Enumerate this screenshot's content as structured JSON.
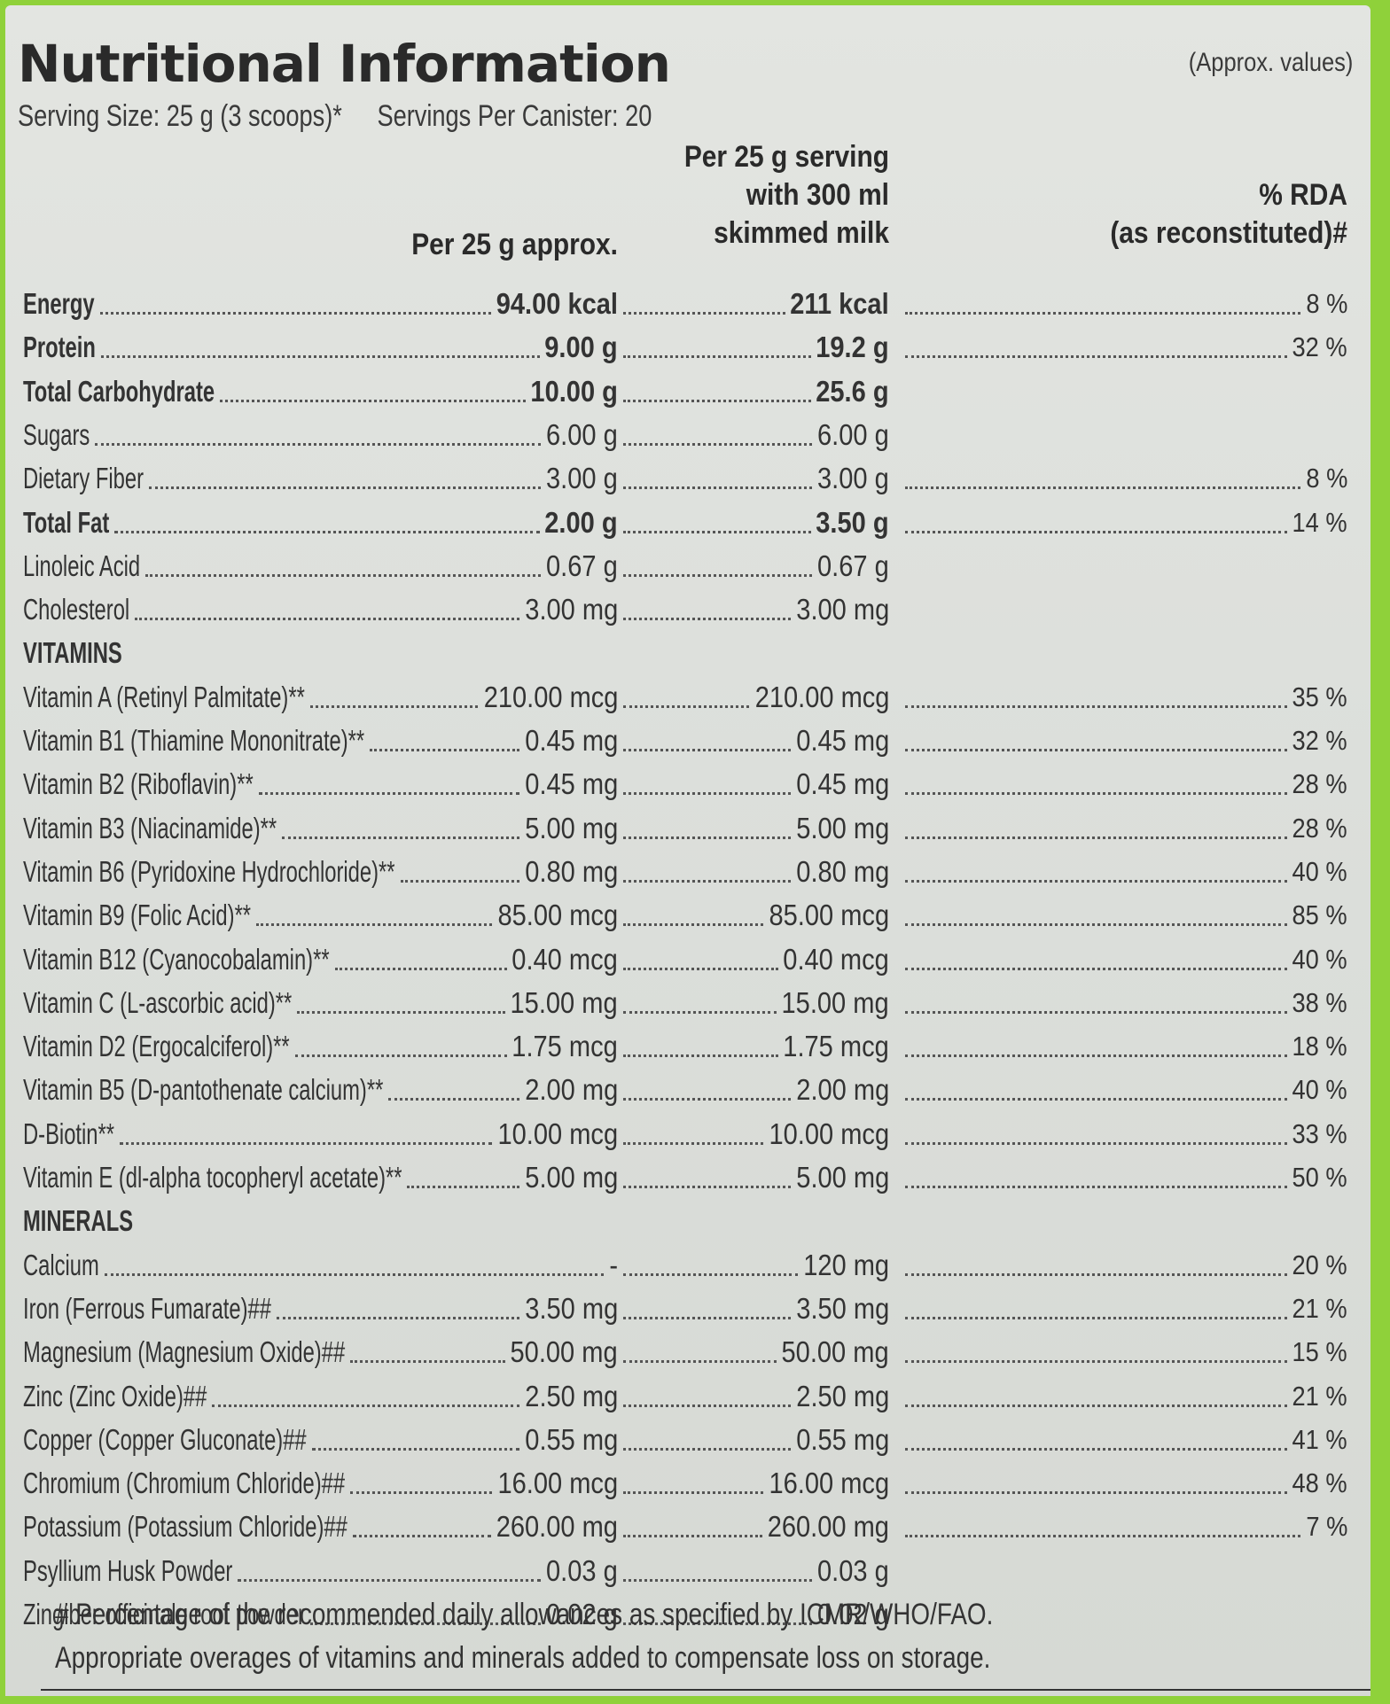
{
  "header": {
    "title": "Nutritional Information",
    "approx": "(Approx. values)",
    "serving_size": "Serving Size: 25 g (3 scoops)*",
    "servings_per_canister": "Servings Per Canister: 20"
  },
  "columns": {
    "col1": "Per 25 g approx.",
    "col2_line1": "Per 25 g serving",
    "col2_line2": "with 300 ml",
    "col2_line3": "skimmed milk",
    "col3_line1": "% RDA",
    "col3_line2": "(as reconstituted)#"
  },
  "rows": [
    {
      "label": "Energy",
      "c1": "94.00 kcal",
      "c2": "211 kcal",
      "c3": "8 %",
      "bold": true
    },
    {
      "label": "Protein",
      "c1": "9.00 g",
      "c2": "19.2 g",
      "c3": "32 %",
      "bold": true
    },
    {
      "label": "Total Carbohydrate",
      "c1": "10.00 g",
      "c2": "25.6 g",
      "c3": "",
      "bold": true
    },
    {
      "label": "Sugars",
      "c1": "6.00 g",
      "c2": "6.00 g",
      "c3": "",
      "bold": false
    },
    {
      "label": "Dietary Fiber",
      "c1": "3.00 g",
      "c2": "3.00 g",
      "c3": "8 %",
      "bold": false
    },
    {
      "label": "Total Fat",
      "c1": "2.00 g",
      "c2": "3.50 g",
      "c3": "14 %",
      "bold": true
    },
    {
      "label": "Linoleic Acid",
      "c1": "0.67 g",
      "c2": "0.67 g",
      "c3": "",
      "bold": false
    },
    {
      "label": "Cholesterol",
      "c1": "3.00 mg",
      "c2": "3.00 mg",
      "c3": "",
      "bold": false
    },
    {
      "label": "VITAMINS",
      "section": true
    },
    {
      "label": "Vitamin A (Retinyl Palmitate)**",
      "c1": "210.00 mcg",
      "c2": "210.00 mcg",
      "c3": "35 %"
    },
    {
      "label": "Vitamin B1 (Thiamine Mononitrate)**",
      "c1": "0.45 mg",
      "c2": "0.45 mg",
      "c3": "32 %"
    },
    {
      "label": "Vitamin B2 (Riboflavin)**",
      "c1": "0.45 mg",
      "c2": "0.45 mg",
      "c3": "28 %"
    },
    {
      "label": "Vitamin B3 (Niacinamide)**",
      "c1": "5.00 mg",
      "c2": "5.00 mg",
      "c3": "28 %"
    },
    {
      "label": "Vitamin B6 (Pyridoxine Hydrochloride)**",
      "c1": "0.80 mg",
      "c2": "0.80 mg",
      "c3": "40 %"
    },
    {
      "label": "Vitamin B9 (Folic Acid)**",
      "c1": "85.00 mcg",
      "c2": "85.00 mcg",
      "c3": "85 %"
    },
    {
      "label": "Vitamin B12 (Cyanocobalamin)**",
      "c1": "0.40 mcg",
      "c2": "0.40 mcg",
      "c3": "40 %"
    },
    {
      "label": "Vitamin C (L-ascorbic acid)**",
      "c1": "15.00 mg",
      "c2": "15.00 mg",
      "c3": "38 %"
    },
    {
      "label": "Vitamin D2 (Ergocalciferol)**",
      "c1": "1.75 mcg",
      "c2": "1.75 mcg",
      "c3": "18 %"
    },
    {
      "label": "Vitamin B5 (D-pantothenate calcium)**",
      "c1": "2.00 mg",
      "c2": "2.00 mg",
      "c3": "40 %"
    },
    {
      "label": "D-Biotin**",
      "c1": "10.00 mcg",
      "c2": "10.00 mcg",
      "c3": "33 %"
    },
    {
      "label": "Vitamin E (dl-alpha tocopheryl acetate)**",
      "c1": "5.00 mg",
      "c2": "5.00 mg",
      "c3": "50 %"
    },
    {
      "label": "MINERALS",
      "section": true
    },
    {
      "label": "Calcium",
      "c1": "-",
      "c2": "120 mg",
      "c3": "20 %"
    },
    {
      "label": "Iron (Ferrous Fumarate)##",
      "c1": "3.50 mg",
      "c2": "3.50 mg",
      "c3": "21 %"
    },
    {
      "label": "Magnesium (Magnesium Oxide)##",
      "c1": "50.00 mg",
      "c2": "50.00 mg",
      "c3": "15 %"
    },
    {
      "label": "Zinc (Zinc Oxide)##",
      "c1": "2.50 mg",
      "c2": "2.50 mg",
      "c3": "21 %"
    },
    {
      "label": "Copper (Copper Gluconate)##",
      "c1": "0.55 mg",
      "c2": "0.55 mg",
      "c3": "41 %"
    },
    {
      "label": "Chromium (Chromium Chloride)##",
      "c1": "16.00 mcg",
      "c2": "16.00 mcg",
      "c3": "48 %"
    },
    {
      "label": "Potassium (Potassium Chloride)##",
      "c1": "260.00 mg",
      "c2": "260.00 mg",
      "c3": "7 %"
    },
    {
      "label": "Psyllium Husk Powder",
      "c1": "0.03 g",
      "c2": "0.03 g",
      "c3": ""
    },
    {
      "label": "Zingiber officinale root powder",
      "c1": "0.02 g",
      "c2": "0.02 g",
      "c3": ""
    }
  ],
  "footnotes": {
    "line1": "# Percentage of the recommended daily allowances as specified by ICMR/WHO/FAO.",
    "line2": "Appropriate overages of vitamins and minerals added to compensate loss on storage."
  }
}
